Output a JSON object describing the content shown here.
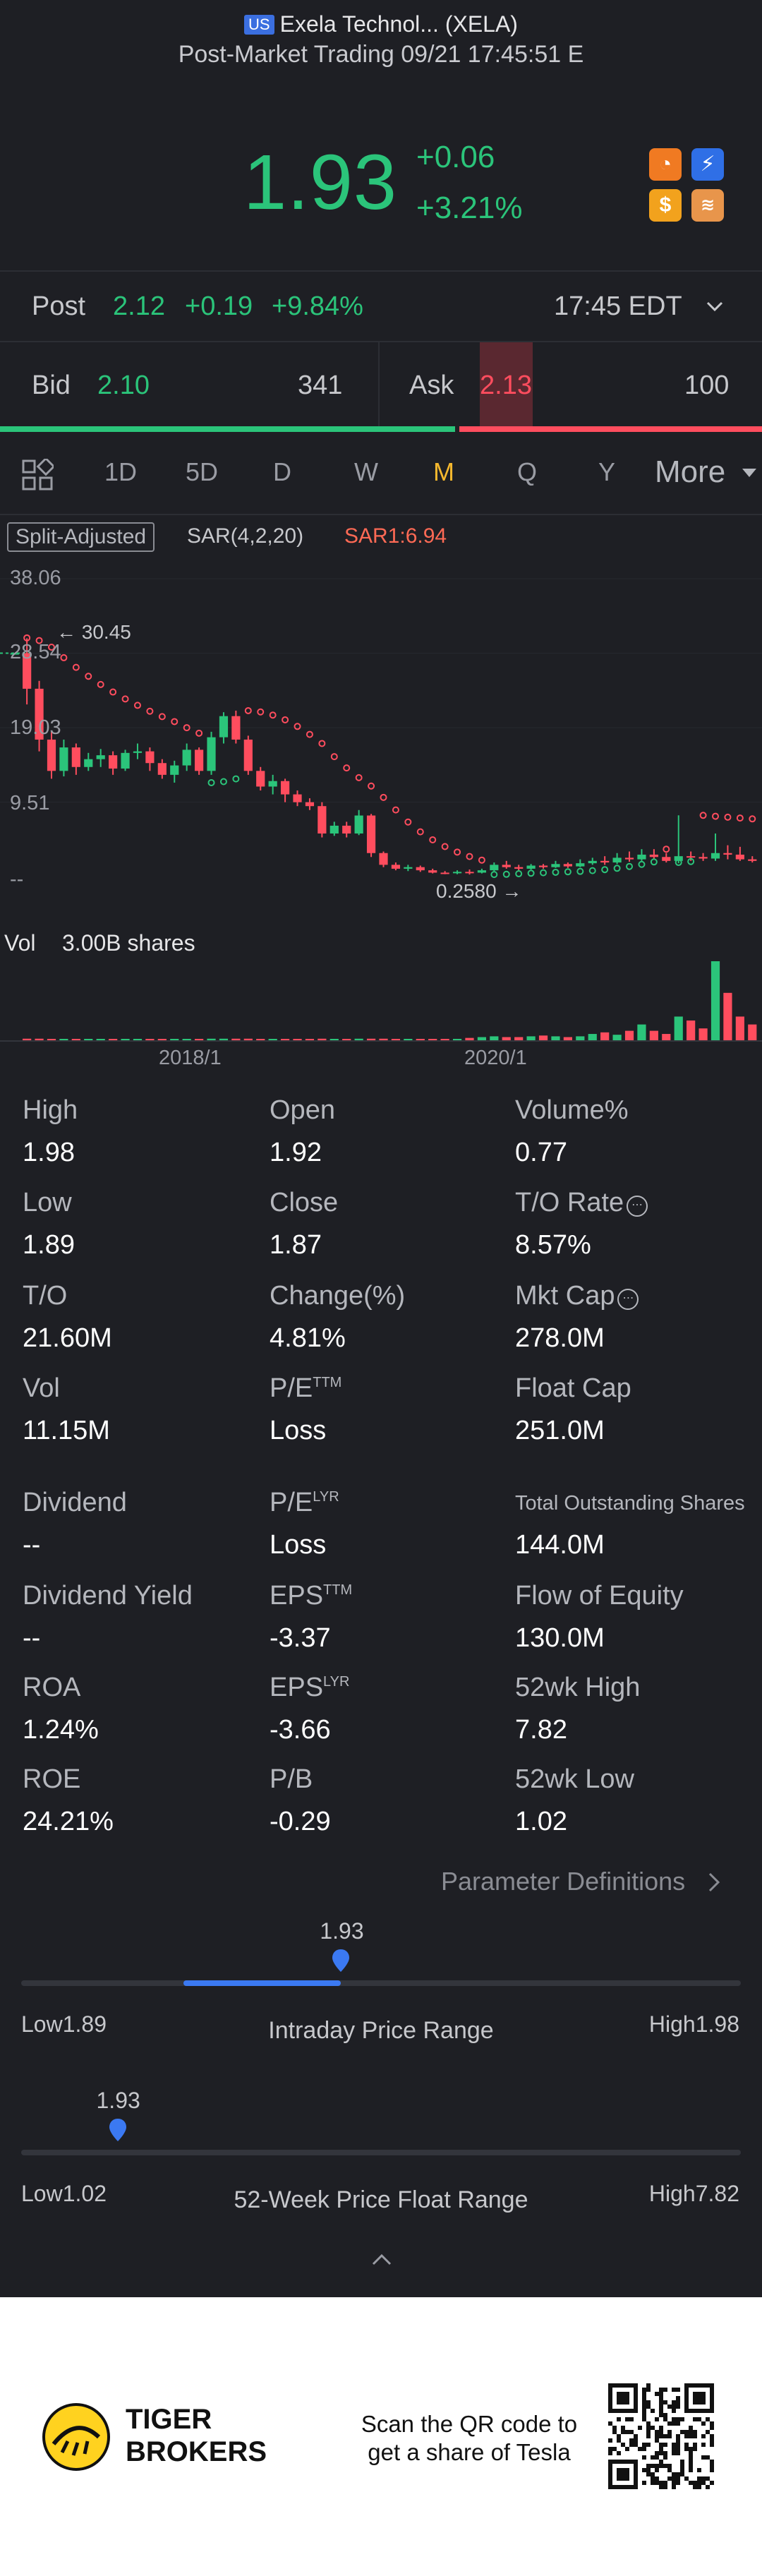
{
  "header": {
    "market_flag": "US",
    "title": "Exela Technol... (XELA)",
    "subtitle": "Post-Market Trading 09/21 17:45:51 E"
  },
  "quote": {
    "price": "1.93",
    "change": "+0.06",
    "change_pct": "+3.21%"
  },
  "post_market": {
    "label": "Post",
    "price": "2.12",
    "change": "+0.19",
    "change_pct": "+9.84%",
    "time": "17:45 EDT"
  },
  "order_book": {
    "bid_label": "Bid",
    "bid_price": "2.10",
    "bid_size": "341",
    "ask_label": "Ask",
    "ask_price": "2.13",
    "ask_size": "100",
    "bid_ratio": 0.6
  },
  "period_tabs": {
    "items": [
      "1D",
      "5D",
      "D",
      "W",
      "M",
      "Q",
      "Y"
    ],
    "active": "M",
    "more_label": "More"
  },
  "chart": {
    "adjust_label": "Split-Adjusted",
    "indicator_label": "SAR(4,2,20)",
    "sar_value_label": "SAR1:6.94",
    "max_marker": "30.45",
    "min_marker": "0.2580",
    "y_ticks": [
      "38.06",
      "28.54",
      "19.03",
      "9.51",
      "--"
    ],
    "x_ticks": [
      "2018/1",
      "2020/1"
    ],
    "volume_label": "Vol",
    "volume_value": "3.00B shares",
    "up_color": "#2bc47a",
    "down_color": "#ff4d5e",
    "sar_color": "#ff4d5e"
  },
  "chart_data": {
    "type": "candlestick",
    "period": "monthly",
    "ylim": [
      0,
      38.06
    ],
    "y_ticks": [
      38.06,
      28.54,
      19.03,
      9.51
    ],
    "x_ticks": [
      "2018/1",
      "2020/1"
    ],
    "max_price": 30.45,
    "min_price": 0.258,
    "candles": [
      {
        "o": 28.54,
        "c": 28.54,
        "h": 28.54,
        "l": 28.54
      },
      {
        "o": 28.54,
        "c": 24.0,
        "h": 30.45,
        "l": 22.0
      },
      {
        "o": 24.0,
        "c": 17.5,
        "h": 25.0,
        "l": 16.0
      },
      {
        "o": 17.5,
        "c": 13.5,
        "h": 18.5,
        "l": 12.5
      },
      {
        "o": 13.5,
        "c": 16.5,
        "h": 17.5,
        "l": 12.8
      },
      {
        "o": 16.5,
        "c": 14.0,
        "h": 17.0,
        "l": 13.0
      },
      {
        "o": 14.0,
        "c": 15.0,
        "h": 15.8,
        "l": 13.5
      },
      {
        "o": 15.0,
        "c": 15.5,
        "h": 16.3,
        "l": 14.0
      },
      {
        "o": 15.5,
        "c": 13.8,
        "h": 16.0,
        "l": 13.0
      },
      {
        "o": 13.8,
        "c": 15.8,
        "h": 16.2,
        "l": 13.5
      },
      {
        "o": 15.8,
        "c": 16.0,
        "h": 17.0,
        "l": 15.0
      },
      {
        "o": 16.0,
        "c": 14.5,
        "h": 16.5,
        "l": 13.5
      },
      {
        "o": 14.5,
        "c": 13.0,
        "h": 15.0,
        "l": 12.5
      },
      {
        "o": 13.0,
        "c": 14.2,
        "h": 14.8,
        "l": 12.0
      },
      {
        "o": 14.2,
        "c": 16.2,
        "h": 17.0,
        "l": 13.5
      },
      {
        "o": 16.2,
        "c": 13.5,
        "h": 16.5,
        "l": 13.0
      },
      {
        "o": 13.5,
        "c": 17.8,
        "h": 18.5,
        "l": 13.0
      },
      {
        "o": 17.8,
        "c": 20.5,
        "h": 21.0,
        "l": 17.0
      },
      {
        "o": 20.5,
        "c": 17.5,
        "h": 21.2,
        "l": 17.0
      },
      {
        "o": 17.5,
        "c": 13.5,
        "h": 18.0,
        "l": 13.0
      },
      {
        "o": 13.5,
        "c": 11.5,
        "h": 14.0,
        "l": 11.0
      },
      {
        "o": 11.5,
        "c": 12.2,
        "h": 13.0,
        "l": 10.5
      },
      {
        "o": 12.2,
        "c": 10.5,
        "h": 12.5,
        "l": 9.5
      },
      {
        "o": 10.5,
        "c": 9.5,
        "h": 11.0,
        "l": 9.0
      },
      {
        "o": 9.5,
        "c": 9.0,
        "h": 10.0,
        "l": 8.5
      },
      {
        "o": 9.0,
        "c": 5.5,
        "h": 9.5,
        "l": 5.0
      },
      {
        "o": 5.5,
        "c": 6.5,
        "h": 7.0,
        "l": 5.2
      },
      {
        "o": 6.5,
        "c": 5.5,
        "h": 7.0,
        "l": 5.0
      },
      {
        "o": 5.5,
        "c": 7.8,
        "h": 8.5,
        "l": 5.3
      },
      {
        "o": 7.8,
        "c": 3.0,
        "h": 8.0,
        "l": 2.5
      },
      {
        "o": 3.0,
        "c": 1.5,
        "h": 3.2,
        "l": 1.2
      },
      {
        "o": 1.5,
        "c": 1.0,
        "h": 1.8,
        "l": 0.8
      },
      {
        "o": 1.0,
        "c": 1.2,
        "h": 1.5,
        "l": 0.7
      },
      {
        "o": 1.2,
        "c": 0.8,
        "h": 1.4,
        "l": 0.6
      },
      {
        "o": 0.8,
        "c": 0.5,
        "h": 1.0,
        "l": 0.4
      },
      {
        "o": 0.5,
        "c": 0.45,
        "h": 0.7,
        "l": 0.3
      },
      {
        "o": 0.45,
        "c": 0.6,
        "h": 0.8,
        "l": 0.3
      },
      {
        "o": 0.6,
        "c": 0.5,
        "h": 0.9,
        "l": 0.258
      },
      {
        "o": 0.5,
        "c": 0.8,
        "h": 1.0,
        "l": 0.4
      },
      {
        "o": 0.8,
        "c": 1.5,
        "h": 1.8,
        "l": 0.7
      },
      {
        "o": 1.5,
        "c": 1.2,
        "h": 2.0,
        "l": 1.0
      },
      {
        "o": 1.2,
        "c": 1.0,
        "h": 1.5,
        "l": 0.8
      },
      {
        "o": 1.0,
        "c": 1.4,
        "h": 1.6,
        "l": 0.9
      },
      {
        "o": 1.4,
        "c": 1.2,
        "h": 1.6,
        "l": 1.0
      },
      {
        "o": 1.2,
        "c": 1.6,
        "h": 2.0,
        "l": 1.1
      },
      {
        "o": 1.6,
        "c": 1.3,
        "h": 1.8,
        "l": 1.1
      },
      {
        "o": 1.3,
        "c": 1.7,
        "h": 2.2,
        "l": 1.2
      },
      {
        "o": 1.7,
        "c": 2.0,
        "h": 2.4,
        "l": 1.5
      },
      {
        "o": 2.0,
        "c": 1.8,
        "h": 2.6,
        "l": 1.5
      },
      {
        "o": 1.8,
        "c": 2.4,
        "h": 3.0,
        "l": 1.6
      },
      {
        "o": 2.4,
        "c": 2.2,
        "h": 3.2,
        "l": 1.9
      },
      {
        "o": 2.2,
        "c": 2.8,
        "h": 3.5,
        "l": 2.0
      },
      {
        "o": 2.8,
        "c": 2.5,
        "h": 3.5,
        "l": 2.2
      },
      {
        "o": 2.5,
        "c": 2.0,
        "h": 3.0,
        "l": 1.8
      },
      {
        "o": 2.0,
        "c": 2.6,
        "h": 7.82,
        "l": 1.7
      },
      {
        "o": 2.6,
        "c": 2.5,
        "h": 3.2,
        "l": 2.0
      },
      {
        "o": 2.5,
        "c": 2.3,
        "h": 3.0,
        "l": 2.0
      },
      {
        "o": 2.3,
        "c": 3.0,
        "h": 5.5,
        "l": 2.0
      },
      {
        "o": 3.0,
        "c": 2.8,
        "h": 4.0,
        "l": 2.2
      },
      {
        "o": 2.8,
        "c": 2.2,
        "h": 3.8,
        "l": 2.0
      },
      {
        "o": 2.2,
        "c": 2.0,
        "h": 2.6,
        "l": 1.8
      }
    ],
    "volume_relative": [
      0,
      0.02,
      0.02,
      0.01,
      0.01,
      0.01,
      0.01,
      0.01,
      0.01,
      0.01,
      0.01,
      0.01,
      0.01,
      0.01,
      0.01,
      0.01,
      0.02,
      0.02,
      0.02,
      0.02,
      0.01,
      0.01,
      0.01,
      0.01,
      0.01,
      0.02,
      0.01,
      0.01,
      0.02,
      0.02,
      0.02,
      0.01,
      0.01,
      0.01,
      0.01,
      0.01,
      0.01,
      0.03,
      0.04,
      0.05,
      0.04,
      0.04,
      0.05,
      0.06,
      0.05,
      0.04,
      0.05,
      0.08,
      0.1,
      0.07,
      0.12,
      0.2,
      0.12,
      0.08,
      0.3,
      0.25,
      0.15,
      1.0,
      0.6,
      0.3,
      0.2
    ]
  },
  "stats": [
    [
      {
        "label": "High",
        "value": "1.98"
      },
      {
        "label": "Open",
        "value": "1.92"
      },
      {
        "label": "Volume%",
        "value": "0.77"
      }
    ],
    [
      {
        "label": "Low",
        "value": "1.89"
      },
      {
        "label": "Close",
        "value": "1.87"
      },
      {
        "label": "T/O Rate",
        "value": "8.57%"
      }
    ],
    [
      {
        "label": "T/O",
        "value": "21.60M"
      },
      {
        "label": "Change(%)",
        "value": "4.81%"
      },
      {
        "label": "Mkt Cap",
        "value": "278.0M"
      }
    ],
    [
      {
        "label": "Vol",
        "value": "11.15M"
      },
      {
        "label": "P/E",
        "sup": "TTM",
        "value": "Loss"
      },
      {
        "label": "Float Cap",
        "value": "251.0M"
      }
    ],
    [
      {
        "label": "Dividend",
        "value": "--"
      },
      {
        "label": "P/E",
        "sup": "LYR",
        "value": "Loss"
      },
      {
        "label": "Total Outstanding Shares",
        "value": "144.0M"
      }
    ],
    [
      {
        "label": "Dividend Yield",
        "value": "--"
      },
      {
        "label": "EPS",
        "sup": "TTM",
        "value": "-3.37"
      },
      {
        "label": "Flow of Equity",
        "value": "130.0M"
      }
    ],
    [
      {
        "label": "ROA",
        "value": "1.24%"
      },
      {
        "label": "EPS",
        "sup": "LYR",
        "value": "-3.66"
      },
      {
        "label": "52wk High",
        "value": "7.82"
      }
    ],
    [
      {
        "label": "ROE",
        "value": "24.21%"
      },
      {
        "label": "P/B",
        "value": "-0.29"
      },
      {
        "label": "52wk Low",
        "value": "1.02"
      }
    ]
  ],
  "info_glyph": "⋯",
  "param_defs_label": "Parameter Definitions",
  "intraday_range": {
    "title": "Intraday Price Range",
    "low_label": "Low1.89",
    "high_label": "High1.98",
    "current": "1.93",
    "low": 1.89,
    "high": 1.98,
    "value": 1.93,
    "open": 1.92
  },
  "week52_range": {
    "title": "52-Week Price Float Range",
    "low_label": "Low1.02",
    "high_label": "High7.82",
    "current": "1.93",
    "low": 1.02,
    "high": 7.82,
    "value": 1.93
  },
  "footer": {
    "brand_line1": "TIGER",
    "brand_line2": "BROKERS",
    "promo_line1": "Scan the QR code to",
    "promo_line2": "get a share of Tesla"
  }
}
